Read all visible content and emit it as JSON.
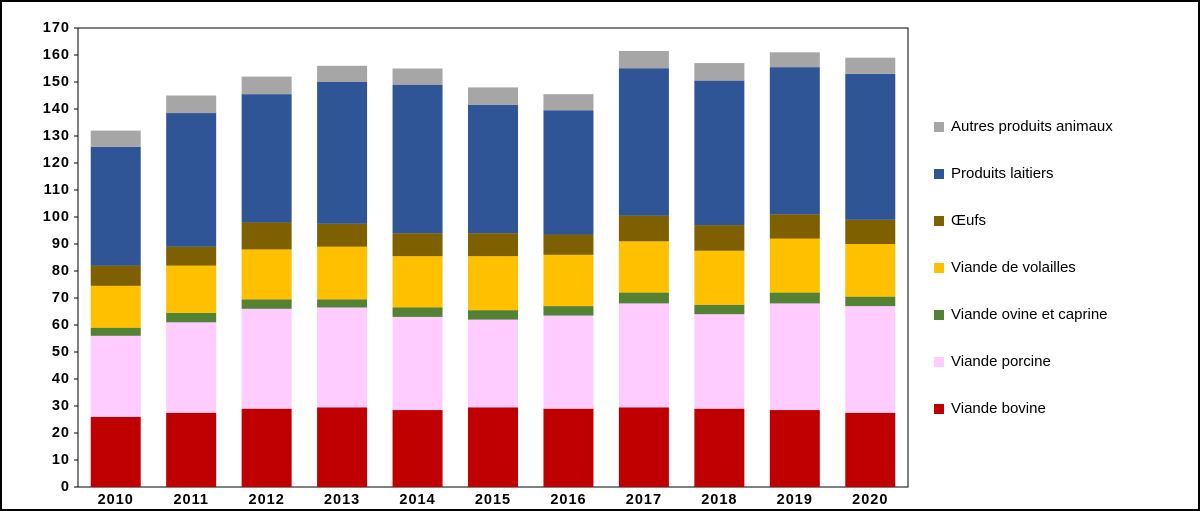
{
  "chart_data": {
    "type": "stacked-bar",
    "categories": [
      "2010",
      "2011",
      "2012",
      "2013",
      "2014",
      "2015",
      "2016",
      "2017",
      "2018",
      "2019",
      "2020"
    ],
    "series": [
      {
        "name": "Viande bovine",
        "color": "#c00000",
        "values": [
          26,
          27.5,
          29,
          29.5,
          28.5,
          29.5,
          29,
          29.5,
          29,
          28.5,
          27.5
        ]
      },
      {
        "name": "Viande porcine",
        "color": "#ffccff",
        "values": [
          30,
          33.5,
          37,
          37,
          34.5,
          32.5,
          34.5,
          38.5,
          35,
          39.5,
          39.5
        ]
      },
      {
        "name": "Viande ovine et caprine",
        "color": "#548235",
        "values": [
          3,
          3.5,
          3.5,
          3,
          3.5,
          3.5,
          3.5,
          4,
          3.5,
          4,
          3.5
        ]
      },
      {
        "name": "Viande de volailles",
        "color": "#ffc000",
        "values": [
          15.5,
          17.5,
          18.5,
          19.5,
          19,
          20,
          19,
          19,
          20,
          20,
          19.5
        ]
      },
      {
        "name": "Œufs",
        "color": "#7f6000",
        "values": [
          7.5,
          7,
          10,
          8.5,
          8.5,
          8.5,
          7.5,
          9.5,
          9.5,
          9,
          9
        ]
      },
      {
        "name": "Produits laitiers",
        "color": "#2f5597",
        "values": [
          44,
          49.5,
          47.5,
          52.5,
          55,
          47.5,
          46,
          54.5,
          53.5,
          54.5,
          54
        ]
      },
      {
        "name": "Autres produits animaux",
        "color": "#a6a6a6",
        "values": [
          6,
          6.5,
          6.5,
          6,
          6,
          6.5,
          6,
          6.5,
          6.5,
          5.5,
          6
        ]
      }
    ],
    "ylim": [
      0,
      170
    ],
    "yticks": [
      0,
      10,
      20,
      30,
      40,
      50,
      60,
      70,
      80,
      90,
      100,
      110,
      120,
      130,
      140,
      150,
      160,
      170
    ],
    "legend": "right"
  }
}
